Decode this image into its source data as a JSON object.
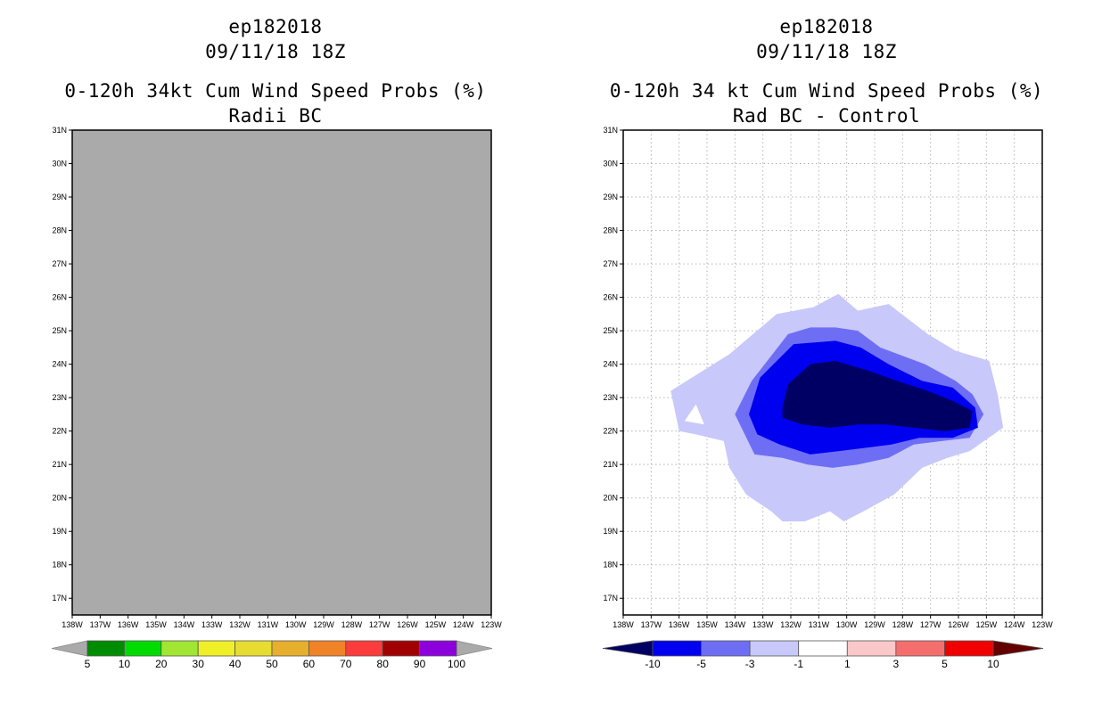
{
  "panels": {
    "left": {
      "title1": "ep182018",
      "title2": "09/11/18 18Z",
      "title3": "0-120h 34kt Cum Wind Speed Probs (%)",
      "title4": "Radii BC",
      "fill_color": "#aaaaaa",
      "frame_color": "#000000"
    },
    "right": {
      "title1": "ep182018",
      "title2": "09/11/18 18Z",
      "title3": "0-120h 34 kt Cum Wind Speed Probs (%)",
      "title4": "Rad BC - Control",
      "grid_color": "#b4b4b4"
    }
  },
  "chart_data": [
    {
      "type": "map",
      "title": "0-120h 34kt Cum Wind Speed Probs (%) — Radii BC",
      "xlim": [
        -138,
        -123
      ],
      "ylim": [
        16.5,
        31
      ],
      "xticks": [
        -138,
        -137,
        -136,
        -135,
        -134,
        -133,
        -132,
        -131,
        -130,
        -129,
        -128,
        -127,
        -126,
        -125,
        -124,
        -123
      ],
      "xtick_labels": [
        "138W",
        "137W",
        "136W",
        "135W",
        "134W",
        "133W",
        "132W",
        "131W",
        "130W",
        "129W",
        "128W",
        "127W",
        "126W",
        "125W",
        "124W",
        "123W"
      ],
      "yticks": [
        17,
        18,
        19,
        20,
        21,
        22,
        23,
        24,
        25,
        26,
        27,
        28,
        29,
        30,
        31
      ],
      "ytick_labels": [
        "17N",
        "18N",
        "19N",
        "20N",
        "21N",
        "22N",
        "23N",
        "24N",
        "25N",
        "26N",
        "27N",
        "28N",
        "29N",
        "30N",
        "31N"
      ],
      "grid": false,
      "field": "uniform gray (no probability data)",
      "colorbar": {
        "labels": [
          "5",
          "10",
          "20",
          "30",
          "40",
          "50",
          "60",
          "70",
          "80",
          "90",
          "100"
        ],
        "colors": [
          "#008c00",
          "#00dc00",
          "#a0e632",
          "#f0f028",
          "#e6dc32",
          "#e6af2d",
          "#f08228",
          "#fa3c3c",
          "#a00000",
          "#8c00dc"
        ],
        "extend_color": "#aaaaaa"
      }
    },
    {
      "type": "map",
      "title": "0-120h 34 kt Cum Wind Speed Probs (%) — Rad BC - Control",
      "xlim": [
        -138,
        -123
      ],
      "ylim": [
        16.5,
        31
      ],
      "xticks": [
        -138,
        -137,
        -136,
        -135,
        -134,
        -133,
        -132,
        -131,
        -130,
        -129,
        -128,
        -127,
        -126,
        -125,
        -124,
        -123
      ],
      "xtick_labels": [
        "138W",
        "137W",
        "136W",
        "135W",
        "134W",
        "133W",
        "132W",
        "131W",
        "130W",
        "129W",
        "128W",
        "127W",
        "126W",
        "125W",
        "124W",
        "123W"
      ],
      "yticks": [
        17,
        18,
        19,
        20,
        21,
        22,
        23,
        24,
        25,
        26,
        27,
        28,
        29,
        30,
        31
      ],
      "ytick_labels": [
        "17N",
        "18N",
        "19N",
        "20N",
        "21N",
        "22N",
        "23N",
        "24N",
        "25N",
        "26N",
        "27N",
        "28N",
        "29N",
        "30N",
        "31N"
      ],
      "grid": true,
      "contour_levels": [
        {
          "range": "-3 to -1",
          "color": "#c8c8fa",
          "points": [
            [
              -136,
              22
            ],
            [
              -136.3,
              23.2
            ],
            [
              -134.2,
              24.3
            ],
            [
              -132.5,
              25.5
            ],
            [
              -131.2,
              25.7
            ],
            [
              -130.3,
              26.1
            ],
            [
              -129.6,
              25.6
            ],
            [
              -128.5,
              25.8
            ],
            [
              -127.1,
              24.9
            ],
            [
              -126.1,
              24.4
            ],
            [
              -124.9,
              24.1
            ],
            [
              -124.6,
              23.1
            ],
            [
              -124.4,
              22.1
            ],
            [
              -125.6,
              21.4
            ],
            [
              -126.4,
              21.2
            ],
            [
              -127.3,
              20.9
            ],
            [
              -128.3,
              20.1
            ],
            [
              -129.4,
              19.6
            ],
            [
              -130.1,
              19.3
            ],
            [
              -130.6,
              19.6
            ],
            [
              -131.5,
              19.3
            ],
            [
              -132.3,
              19.3
            ],
            [
              -132.7,
              19.6
            ],
            [
              -133.6,
              20.1
            ],
            [
              -134.2,
              20.9
            ],
            [
              -134.4,
              21.7
            ],
            [
              -135.4,
              21.9
            ]
          ]
        },
        {
          "range": "-3 to -1 (hole)",
          "color": "#ffffff",
          "points": [
            [
              -135.8,
              22.3
            ],
            [
              -135.4,
              22.8
            ],
            [
              -135.1,
              22.2
            ]
          ]
        },
        {
          "range": "-5 to -3",
          "color": "#6e6ef5",
          "points": [
            [
              -134,
              22.5
            ],
            [
              -133.4,
              23.5
            ],
            [
              -132.1,
              24.9
            ],
            [
              -131.3,
              25.1
            ],
            [
              -130.4,
              25.1
            ],
            [
              -129.6,
              25
            ],
            [
              -128.8,
              24.5
            ],
            [
              -127.2,
              24
            ],
            [
              -126.1,
              23.5
            ],
            [
              -125.5,
              23.1
            ],
            [
              -125.1,
              22.5
            ],
            [
              -125.6,
              21.8
            ],
            [
              -126.6,
              21.7
            ],
            [
              -127.6,
              21.6
            ],
            [
              -128.5,
              21.2
            ],
            [
              -129.6,
              21
            ],
            [
              -130.5,
              20.9
            ],
            [
              -131.4,
              21
            ],
            [
              -132.3,
              21.2
            ],
            [
              -133.3,
              21.3
            ]
          ]
        },
        {
          "range": "-10 to -5",
          "color": "#0000f0",
          "points": [
            [
              -133.5,
              22.5
            ],
            [
              -133.1,
              23.6
            ],
            [
              -131.9,
              24.6
            ],
            [
              -130.4,
              24.7
            ],
            [
              -129.5,
              24.5
            ],
            [
              -128.5,
              24
            ],
            [
              -127.3,
              23.5
            ],
            [
              -126.2,
              23.3
            ],
            [
              -125.4,
              22.7
            ],
            [
              -125.3,
              22.1
            ],
            [
              -126.2,
              21.8
            ],
            [
              -127.4,
              21.8
            ],
            [
              -128.4,
              21.6
            ],
            [
              -129.3,
              21.5
            ],
            [
              -130.3,
              21.4
            ],
            [
              -131.3,
              21.3
            ],
            [
              -132.4,
              21.6
            ],
            [
              -133.2,
              21.9
            ]
          ]
        },
        {
          "range": "< -10",
          "color": "#000064",
          "points": [
            [
              -132.3,
              22.7
            ],
            [
              -132.1,
              23.4
            ],
            [
              -131.3,
              24.0
            ],
            [
              -130.4,
              24.1
            ],
            [
              -129.2,
              23.8
            ],
            [
              -128.2,
              23.5
            ],
            [
              -127.1,
              23.2
            ],
            [
              -126.2,
              22.9
            ],
            [
              -125.5,
              22.6
            ],
            [
              -125.6,
              22.1
            ],
            [
              -126.5,
              22.0
            ],
            [
              -127.6,
              22.1
            ],
            [
              -128.6,
              22.2
            ],
            [
              -129.6,
              22.2
            ],
            [
              -130.6,
              22.1
            ],
            [
              -131.6,
              22.2
            ],
            [
              -132.3,
              22.4
            ]
          ]
        }
      ],
      "colorbar": {
        "labels": [
          "-10",
          "-5",
          "-3",
          "-1",
          "1",
          "3",
          "5",
          "10"
        ],
        "colors": [
          "#000064",
          "#0000f0",
          "#6e6ef5",
          "#c8c8fa",
          "#ffffff",
          "#fac8c8",
          "#f56e6e",
          "#f00000",
          "#640000"
        ]
      }
    }
  ]
}
